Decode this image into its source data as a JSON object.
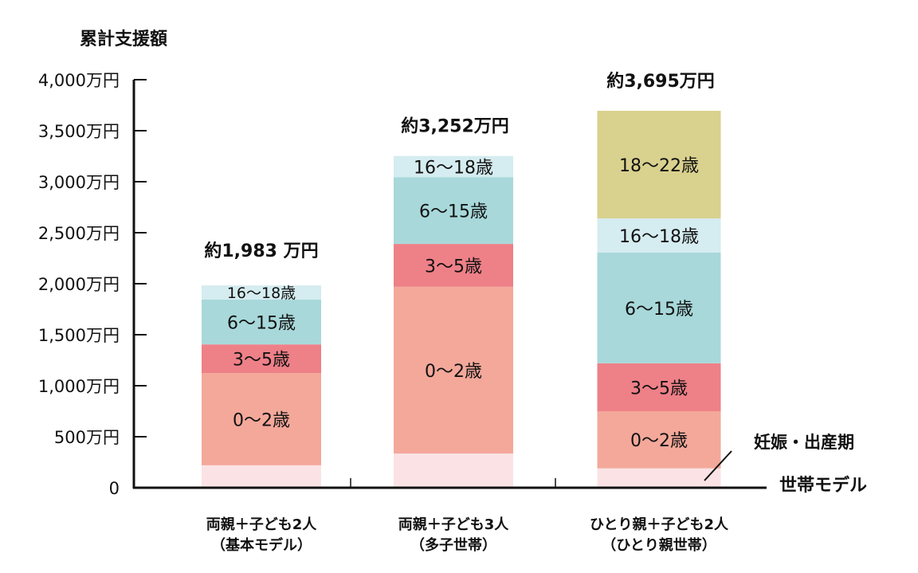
{
  "chart_data": {
    "type": "bar",
    "stacked": true,
    "ylabel": "累計支援額",
    "ylim": [
      0,
      4000
    ],
    "yticks": [
      "0",
      "500万円",
      "1,000万円",
      "1,500万円",
      "2,000万円",
      "2,500万円",
      "3,000万円",
      "3,500万円",
      "4,000万円"
    ],
    "ytick_values": [
      0,
      500,
      1000,
      1500,
      2000,
      2500,
      3000,
      3500,
      4000
    ],
    "xlabel": "世帯モデル",
    "grid": false,
    "categories": [
      {
        "line1": "両親＋子ども2人",
        "line2": "（基本モデル）"
      },
      {
        "line1": "両親＋子ども3人",
        "line2": "（多子世帯）"
      },
      {
        "line1": "ひとり親＋子ども2人",
        "line2": "（ひとり親世帯）"
      }
    ],
    "totals": [
      "約1,983 万円",
      "約3,252万円",
      "約3,695万円"
    ],
    "total_values": [
      1983,
      3252,
      3695
    ],
    "segment_colors": {
      "pregnancy": "#fbe3e5",
      "age0_2": "#f3a89a",
      "age3_5": "#ee8088",
      "age6_15": "#a8d8da",
      "age16_18": "#d5ecf0",
      "age18_22": "#d9d18e"
    },
    "series": [
      {
        "key": "pregnancy",
        "name": "",
        "values": [
          220,
          335,
          190
        ]
      },
      {
        "key": "age0_2",
        "name": "0〜2歳",
        "values": [
          905,
          1635,
          560
        ]
      },
      {
        "key": "age3_5",
        "name": "3〜5歳",
        "values": [
          280,
          420,
          470
        ]
      },
      {
        "key": "age6_15",
        "name": "6〜15歳",
        "values": [
          440,
          655,
          1085
        ]
      },
      {
        "key": "age16_18",
        "name": "16〜18歳",
        "values": [
          138,
          207,
          335
        ]
      },
      {
        "key": "age18_22",
        "name": "18〜22歳",
        "values": [
          0,
          0,
          1055
        ]
      }
    ],
    "annotation": "妊娠・出産期"
  }
}
